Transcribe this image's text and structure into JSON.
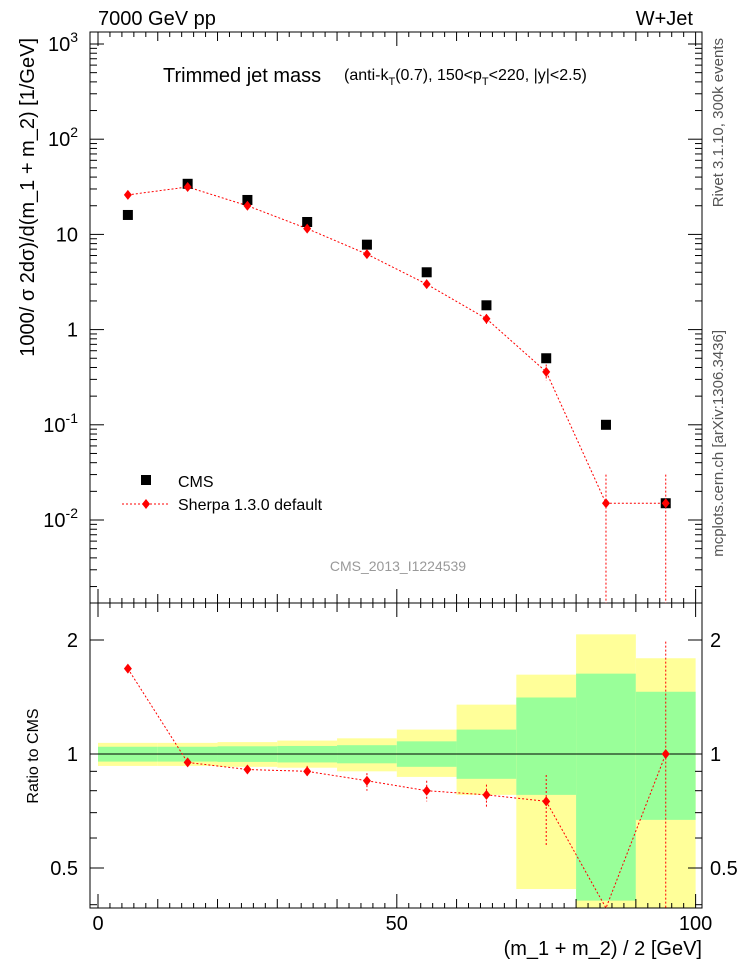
{
  "header": {
    "left": "7000 GeV pp",
    "right": "W+Jet"
  },
  "side_text": {
    "rivet": "Rivet 3.1.10,  300k events",
    "mcplots": "mcplots.cern.ch [arXiv:1306.3436]"
  },
  "chart_data": {
    "type": "scatter",
    "title": "Trimmed jet mass",
    "title_detail_parts": [
      "(anti-k",
      "T",
      "(0.7), 150<p",
      "T",
      "<220, |y|<2.5)"
    ],
    "watermark": "CMS_2013_I1224539",
    "xlabel": "(m_1 + m_2) / 2 [GeV]",
    "ylabel": "1000/ σ 2dσ)/d(m_1 + m_2) [1/GeV]",
    "ratio_ylabel": "Ratio to CMS",
    "xlim": [
      0,
      100
    ],
    "ylim_log": [
      0.001,
      1000
    ],
    "ratio_ylim": [
      0.35,
      2.3
    ],
    "x_ticks": [
      "0",
      "50",
      "100"
    ],
    "y_tick_labels": [
      "10^-2",
      "10^-1",
      "1",
      "10",
      "10^2",
      "10^3"
    ],
    "ratio_ticks": [
      "0.5",
      "1",
      "2"
    ],
    "legend": [
      "CMS",
      "Sherpa 1.3.0 default"
    ],
    "legend_position": "lower-left",
    "series": [
      {
        "name": "CMS",
        "marker": "square",
        "color": "#000000",
        "x": [
          5,
          15,
          25,
          35,
          45,
          55,
          65,
          75,
          85,
          95
        ],
        "values": [
          16,
          34,
          23,
          13.5,
          7.8,
          4.0,
          1.8,
          0.5,
          0.1,
          0.015
        ]
      },
      {
        "name": "Sherpa 1.3.0 default",
        "marker": "diamond",
        "color": "#ff0000",
        "x": [
          5,
          15,
          25,
          35,
          45,
          55,
          65,
          75,
          85,
          95
        ],
        "values": [
          26,
          31.5,
          20,
          11.5,
          6.2,
          3.0,
          1.3,
          0.36,
          0.015,
          0.015
        ],
        "err_up": [
          27.5,
          33.5,
          21.5,
          12.5,
          6.8,
          3.3,
          1.45,
          0.43,
          0.03,
          0.03
        ],
        "err_down": [
          24.5,
          29.5,
          18.5,
          10.5,
          5.6,
          2.7,
          1.15,
          0.29,
          0.0001,
          0.0001
        ]
      }
    ],
    "ratio": {
      "x": [
        5,
        15,
        25,
        35,
        45,
        55,
        65,
        75,
        85,
        95
      ],
      "values": [
        1.68,
        0.95,
        0.91,
        0.9,
        0.85,
        0.8,
        0.78,
        0.75,
        0.15,
        1.0
      ],
      "err_up": [
        1.71,
        0.97,
        0.93,
        0.93,
        0.89,
        0.85,
        0.83,
        0.88,
        0.3,
        1.98
      ],
      "err_down": [
        1.65,
        0.93,
        0.89,
        0.87,
        0.8,
        0.75,
        0.72,
        0.57,
        0.0,
        0.0
      ],
      "band_bins": [
        0,
        10,
        20,
        30,
        40,
        50,
        60,
        70,
        80,
        90,
        100
      ],
      "green_band": [
        [
          0.955,
          1.045
        ],
        [
          0.955,
          1.045
        ],
        [
          0.953,
          1.048
        ],
        [
          0.95,
          1.05
        ],
        [
          0.945,
          1.055
        ],
        [
          0.925,
          1.08
        ],
        [
          0.86,
          1.16
        ],
        [
          0.78,
          1.41
        ],
        [
          0.41,
          1.63
        ],
        [
          0.67,
          1.46
        ]
      ],
      "yellow_band": [
        [
          0.93,
          1.07
        ],
        [
          0.93,
          1.07
        ],
        [
          0.925,
          1.075
        ],
        [
          0.92,
          1.085
        ],
        [
          0.9,
          1.1
        ],
        [
          0.87,
          1.16
        ],
        [
          0.78,
          1.35
        ],
        [
          0.44,
          1.62
        ],
        [
          0.2,
          2.07
        ],
        [
          0.2,
          1.79
        ]
      ]
    }
  }
}
